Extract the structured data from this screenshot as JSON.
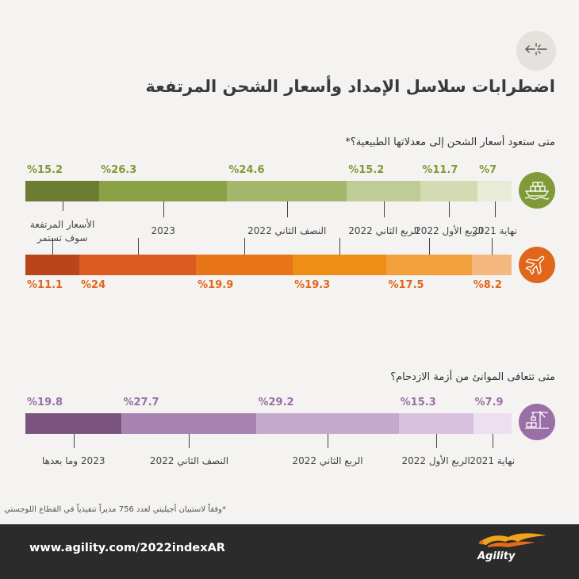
{
  "page": {
    "title": "اضطرابات سلاسل الإمداد وأسعار الشحن المرتفعة",
    "footnote": "*وفقاً لاستبيان أجيليتي لعدد 756 مديراً تنفيذياً في القطاع اللوجستي",
    "url": "www.agility.com/2022indexAR",
    "brand": "Agility",
    "back_icon": "back-arrows-icon"
  },
  "colors": {
    "sea": "#7f9a36",
    "air": "#e0661b",
    "ports": "#9a6fa6"
  },
  "chart_data": [
    {
      "type": "bar",
      "orientation": "stacked-horizontal",
      "title": "متى ستعود أسعار الشحن إلى معدلاتها الطبيعية؟*",
      "categories": [
        "نهاية 2021",
        "الربع الأول 2022",
        "الربع الثاني 2022",
        "النصف الثاني 2022",
        "2023",
        "الأسعار المرتفعة سوف تستمر"
      ],
      "series": [
        {
          "icon": "ship-icon",
          "color": "#7f9a36",
          "values": [
            7,
            11.7,
            15.2,
            24.6,
            26.3,
            15.2
          ],
          "labels": [
            "%7",
            "%11.7",
            "%15.2",
            "%24.6",
            "%26.3",
            "%15.2"
          ],
          "fills": [
            "#e8ebd8",
            "#d2dbb1",
            "#bfcc95",
            "#a5b66d",
            "#8aa246",
            "#6c7d33"
          ]
        },
        {
          "icon": "plane-icon",
          "color": "#e0661b",
          "values": [
            8.2,
            17.5,
            19.3,
            19.9,
            24,
            11.1
          ],
          "labels": [
            "%8.2",
            "%17.5",
            "%19.3",
            "%19.9",
            "%24",
            "%11.1"
          ],
          "fills": [
            "#f4b77e",
            "#f29f3e",
            "#ee8e17",
            "#e8741a",
            "#dc5a21",
            "#b8461a"
          ]
        }
      ]
    },
    {
      "type": "bar",
      "orientation": "stacked-horizontal",
      "title": "متى تتعافى الموانئ من أزمة الازدحام؟",
      "categories": [
        "نهاية 2021",
        "الربع الأول 2022",
        "الربع الثاني 2022",
        "النصف الثاني 2022",
        "2023 وما بعدها"
      ],
      "series": [
        {
          "icon": "port-crane-icon",
          "color": "#9a6fa6",
          "values": [
            7.9,
            15.3,
            29.2,
            27.7,
            19.8
          ],
          "labels": [
            "%7.9",
            "%15.3",
            "%29.2",
            "%27.7",
            "%19.8"
          ],
          "fills": [
            "#ecdff0",
            "#d8c1de",
            "#c6a8ce",
            "#a883b2",
            "#7a537f"
          ]
        }
      ]
    }
  ]
}
